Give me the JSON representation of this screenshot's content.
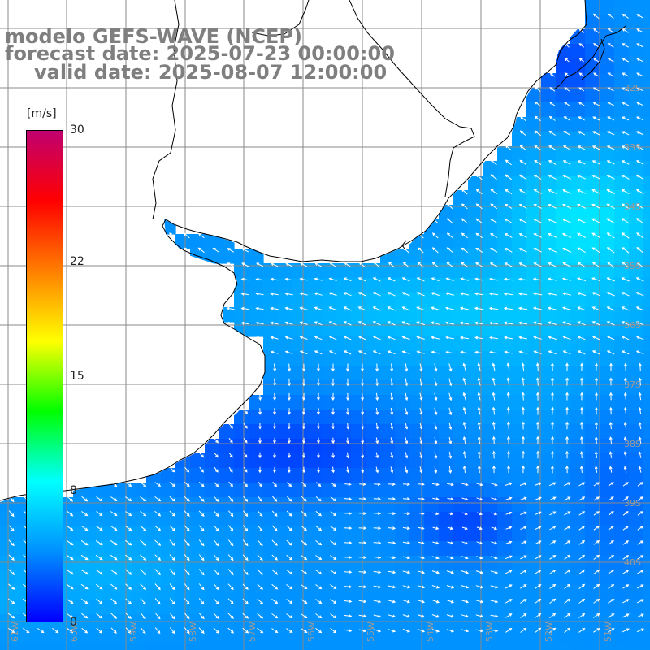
{
  "header": {
    "model_line": "modelo GEFS-WAVE (NCEP)",
    "forecast_line": "forecast date: 2025-07-23 00:00:00",
    "valid_line": "valid date: 2025-08-07 12:00:00"
  },
  "colorbar": {
    "unit": "[m/s]",
    "ticks": [
      "30",
      "22",
      "15",
      "8",
      "0"
    ],
    "values": [
      30,
      22,
      15,
      8,
      0
    ],
    "stops": [
      "#0000ff",
      "#0090ff",
      "#00ffff",
      "#00ff00",
      "#ffff00",
      "#ff7f00",
      "#ff0000",
      "#c00070"
    ]
  },
  "map": {
    "lat_labels": [
      "32S",
      "33S",
      "34S",
      "35S",
      "36S",
      "37S",
      "38S",
      "39S",
      "40S"
    ],
    "lon_labels": [
      "61W",
      "60W",
      "59W",
      "58W",
      "57W",
      "56W",
      "55W",
      "54W",
      "53W",
      "52W",
      "51W"
    ],
    "colors": {
      "land": "#ffffff",
      "coast": "#000000",
      "grid": "#888888",
      "arrow": "#ffffff"
    }
  }
}
